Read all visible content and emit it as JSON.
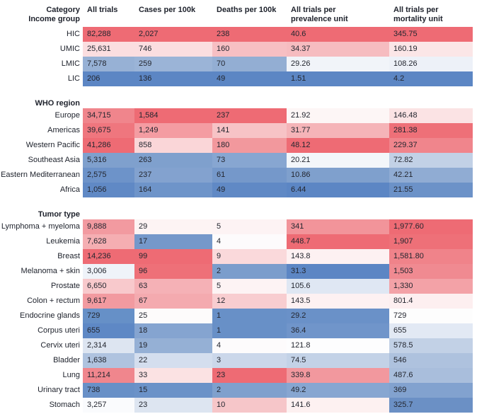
{
  "header": {
    "category_label": "Category"
  },
  "colors": {
    "high_red": "#EE6B74",
    "low_blue": "#5C86C4",
    "text": "#20242E",
    "background": "#FFFFFF"
  },
  "chart_data": {
    "type": "heatmap",
    "title": "",
    "legend_position": "none",
    "grid": false,
    "colorscale": {
      "high": "#EE6B74",
      "mid": "#FDFDFD",
      "low": "#5C86C4",
      "meaning": "red = high, blue = low, normalized per column"
    },
    "columns": [
      "All trials",
      "Cases per 100k",
      "Deaths per 100k",
      "All trials per prevalence unit",
      "All trials per mortality unit"
    ],
    "sections": [
      {
        "label": "Income group",
        "rows": [
          {
            "label": "HIC",
            "values": [
              82288,
              2027,
              238,
              40.6,
              345.75
            ],
            "display": [
              "82,288",
              "2,027",
              "238",
              "40.6",
              "345.75"
            ],
            "cell_colors": [
              "#EE6B74",
              "#EE6B74",
              "#EE6B74",
              "#EE6B74",
              "#EE6B74"
            ]
          },
          {
            "label": "UMIC",
            "values": [
              25631,
              746,
              160,
              34.37,
              160.19
            ],
            "display": [
              "25,631",
              "746",
              "160",
              "34.37",
              "160.19"
            ],
            "cell_colors": [
              "#FBDEE0",
              "#FBDEE0",
              "#F7BFC3",
              "#F6BCC0",
              "#FBE6E7"
            ]
          },
          {
            "label": "LMIC",
            "values": [
              7578,
              259,
              70,
              29.26,
              108.26
            ],
            "display": [
              "7,578",
              "259",
              "70",
              "29.26",
              "108.26"
            ],
            "cell_colors": [
              "#97B1D5",
              "#9BB4D7",
              "#93AED3",
              "#F1F4F9",
              "#EDF1F8"
            ]
          },
          {
            "label": "LIC",
            "values": [
              206,
              136,
              49,
              1.51,
              4.2
            ],
            "display": [
              "206",
              "136",
              "49",
              "1.51",
              "4.2"
            ],
            "cell_colors": [
              "#5C86C4",
              "#5C86C4",
              "#5C86C4",
              "#5C86C4",
              "#5C86C4"
            ]
          }
        ]
      },
      {
        "label": "WHO region",
        "rows": [
          {
            "label": "Europe",
            "values": [
              34715,
              1584,
              237,
              21.92,
              146.48
            ],
            "display": [
              "34,715",
              "1,584",
              "237",
              "21.92",
              "146.48"
            ],
            "cell_colors": [
              "#F0858C",
              "#EE6B74",
              "#EE6B74",
              "#FDF6F6",
              "#FBE3E4"
            ]
          },
          {
            "label": "Americas",
            "values": [
              39675,
              1249,
              141,
              31.77,
              281.38
            ],
            "display": [
              "39,675",
              "1,249",
              "141",
              "31.77",
              "281.38"
            ],
            "cell_colors": [
              "#EF767E",
              "#F49CA2",
              "#F7C3C6",
              "#F5B4B8",
              "#EE7078"
            ]
          },
          {
            "label": "Western Pacific",
            "values": [
              41286,
              858,
              180,
              48.12,
              229.37
            ],
            "display": [
              "41,286",
              "858",
              "180",
              "48.12",
              "229.37"
            ],
            "cell_colors": [
              "#EE6B74",
              "#FAD6D8",
              "#F2989D",
              "#EE6B74",
              "#F0858C"
            ]
          },
          {
            "label": "Southeast Asia",
            "values": [
              5316,
              263,
              73,
              20.21,
              72.82
            ],
            "display": [
              "5,316",
              "263",
              "73",
              "20.21",
              "72.82"
            ],
            "cell_colors": [
              "#7FA0CD",
              "#7FA0CD",
              "#87A6D1",
              "#F3F6FA",
              "#C2D1E6"
            ]
          },
          {
            "label": "Eastern Mediterranean",
            "values": [
              2575,
              237,
              61,
              10.86,
              42.21
            ],
            "display": [
              "2,575",
              "237",
              "61",
              "10.86",
              "42.21"
            ],
            "cell_colors": [
              "#6D93C9",
              "#83A2CF",
              "#7598CA",
              "#7FA0CD",
              "#90ACD3"
            ]
          },
          {
            "label": "Africa",
            "values": [
              1056,
              164,
              49,
              6.44,
              21.55
            ],
            "display": [
              "1,056",
              "164",
              "49",
              "6.44",
              "21.55"
            ],
            "cell_colors": [
              "#6089C5",
              "#6E94C9",
              "#6089C5",
              "#5C86C4",
              "#6C92C8"
            ]
          }
        ]
      },
      {
        "label": "Tumor type",
        "rows": [
          {
            "label": "Lymphoma + myeloma",
            "values": [
              9888,
              29,
              5,
              341,
              1977.6
            ],
            "display": [
              "9,888",
              "29",
              "5",
              "341",
              "1,977.60"
            ],
            "cell_colors": [
              "#F29AA0",
              "#FDF4F4",
              "#FDF3F4",
              "#F2949A",
              "#EE6B74"
            ]
          },
          {
            "label": "Leukemia",
            "values": [
              7628,
              17,
              4,
              448.7,
              1907
            ],
            "display": [
              "7,628",
              "17",
              "4",
              "448.7",
              "1,907"
            ],
            "cell_colors": [
              "#F5AEB2",
              "#7598CA",
              "#FDFBFC",
              "#EE6B74",
              "#EE7078"
            ]
          },
          {
            "label": "Breast",
            "values": [
              14236,
              99,
              9,
              143.8,
              1581.8
            ],
            "display": [
              "14,236",
              "99",
              "9",
              "143.8",
              "1,581.80"
            ],
            "cell_colors": [
              "#EE6B74",
              "#EE6B74",
              "#FAD9DB",
              "#FDF1F2",
              "#F0838A"
            ]
          },
          {
            "label": "Melanoma + skin",
            "values": [
              3006,
              96,
              2,
              31.3,
              1503
            ],
            "display": [
              "3,006",
              "96",
              "2",
              "31.3",
              "1,503"
            ],
            "cell_colors": [
              "#EFF3F9",
              "#EE7078",
              "#7B9DCC",
              "#5C86C4",
              "#F08A91"
            ]
          },
          {
            "label": "Prostate",
            "values": [
              6650,
              63,
              5,
              105.6,
              1330
            ],
            "display": [
              "6,650",
              "63",
              "5",
              "105.6",
              "1,330"
            ],
            "cell_colors": [
              "#F8C9CC",
              "#F5B1B6",
              "#FDF3F4",
              "#DFE7F3",
              "#F3A2A7"
            ]
          },
          {
            "label": "Colon + rectum",
            "values": [
              9617,
              67,
              12,
              143.5,
              801.4
            ],
            "display": [
              "9,617",
              "67",
              "12",
              "143.5",
              "801.4"
            ],
            "cell_colors": [
              "#F29AA0",
              "#F4AAAF",
              "#F8CDD0",
              "#FDF1F2",
              "#FDEFF0"
            ]
          },
          {
            "label": "Endocrine glands",
            "values": [
              729,
              25,
              1,
              29.2,
              729
            ],
            "display": [
              "729",
              "25",
              "1",
              "29.2",
              "729"
            ],
            "cell_colors": [
              "#6690C7",
              "#FDFBFB",
              "#6890C7",
              "#6A91C8",
              "#FDFDFD"
            ]
          },
          {
            "label": "Corpus uteri",
            "values": [
              655,
              18,
              1,
              36.4,
              655
            ],
            "display": [
              "655",
              "18",
              "1",
              "36.4",
              "655"
            ],
            "cell_colors": [
              "#5E88C5",
              "#85A4D0",
              "#6890C7",
              "#7095CA",
              "#E2E9F4"
            ]
          },
          {
            "label": "Cervix uteri",
            "values": [
              2314,
              19,
              4,
              121.8,
              578.5
            ],
            "display": [
              "2,314",
              "19",
              "4",
              "121.8",
              "578.5"
            ],
            "cell_colors": [
              "#DDE5F1",
              "#95B0D5",
              "#FDFBFC",
              "#FDFDFE",
              "#C2D1E6"
            ]
          },
          {
            "label": "Bladder",
            "values": [
              1638,
              22,
              3,
              74.5,
              546
            ],
            "display": [
              "1,638",
              "22",
              "3",
              "74.5",
              "546"
            ],
            "cell_colors": [
              "#AFC3DF",
              "#D4DEEE",
              "#CBD7EA",
              "#C3D2E7",
              "#AEC2DE"
            ]
          },
          {
            "label": "Lung",
            "values": [
              11214,
              33,
              23,
              339.8,
              487.6
            ],
            "display": [
              "11,214",
              "33",
              "23",
              "339.8",
              "487.6"
            ],
            "cell_colors": [
              "#F0868D",
              "#FBE2E3",
              "#EE6B74",
              "#F2989E",
              "#A9BEDC"
            ]
          },
          {
            "label": "Urinary tract",
            "values": [
              738,
              15,
              2,
              49.2,
              369
            ],
            "display": [
              "738",
              "15",
              "2",
              "49.2",
              "369"
            ],
            "cell_colors": [
              "#6890C7",
              "#6B92C8",
              "#7FA0CD",
              "#87A6D1",
              "#82A2CF"
            ]
          },
          {
            "label": "Stomach",
            "values": [
              3257,
              23,
              10,
              141.6,
              325.7
            ],
            "display": [
              "3,257",
              "23",
              "10",
              "141.6",
              "325.7"
            ],
            "cell_colors": [
              "#FAFBFD",
              "#DDE5F1",
              "#F6C6C9",
              "#FDF1F1",
              "#6B90C5"
            ]
          }
        ]
      }
    ]
  }
}
